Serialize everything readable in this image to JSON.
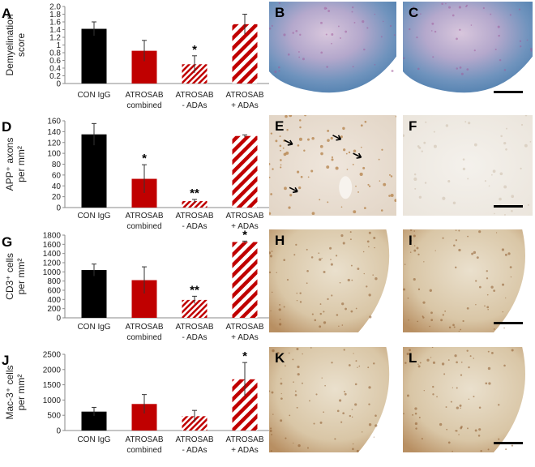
{
  "colors": {
    "con": "#000000",
    "combined": "#c00000",
    "stripe": "#c00000",
    "axis": "#8a8a8a",
    "error": "#333333"
  },
  "categories": [
    [
      "CON IgG"
    ],
    [
      "ATROSAB",
      "combined"
    ],
    [
      "ATROSAB",
      "- ADAs"
    ],
    [
      "ATROSAB",
      "+ ADAs"
    ]
  ],
  "bar_styles": [
    "solid-black",
    "solid-red",
    "thin-stripe-red",
    "thick-stripe-red"
  ],
  "chart_data": [
    {
      "type": "bar",
      "panel": "A",
      "ylabel_lines": [
        "Demyelination",
        "score"
      ],
      "ylim": [
        0,
        2.0
      ],
      "yticks": [
        "0",
        "0.2",
        "0.4",
        "0.6",
        "0.8",
        "1",
        "1.2",
        "1.4",
        "1.6",
        "1.8",
        "2.0"
      ],
      "values": [
        1.42,
        0.85,
        0.5,
        1.54
      ],
      "errors": [
        0.18,
        0.27,
        0.22,
        0.26
      ],
      "significance": [
        "",
        "",
        "*",
        ""
      ]
    },
    {
      "type": "bar",
      "panel": "D",
      "ylabel_lines": [
        "APP⁺ axons",
        "per mm²"
      ],
      "ylim": [
        0,
        160
      ],
      "yticks": [
        "0",
        "20",
        "40",
        "60",
        "80",
        "100",
        "120",
        "140",
        "160"
      ],
      "values": [
        135,
        53,
        12,
        132
      ],
      "errors": [
        20,
        26,
        3,
        2
      ],
      "significance": [
        "",
        "*",
        "**",
        ""
      ]
    },
    {
      "type": "bar",
      "panel": "G",
      "ylabel_lines": [
        "CD3⁺ cells",
        "per mm²"
      ],
      "ylim": [
        0,
        1800
      ],
      "yticks": [
        "0",
        "200",
        "400",
        "600",
        "800",
        "1000",
        "1200",
        "1400",
        "1600",
        "1800"
      ],
      "values": [
        1040,
        820,
        390,
        1650
      ],
      "errors": [
        130,
        290,
        80,
        20
      ],
      "significance": [
        "",
        "",
        "**",
        "*"
      ]
    },
    {
      "type": "bar",
      "panel": "J",
      "ylabel_lines": [
        "Mac-3⁺ cells",
        "per mm²"
      ],
      "ylim": [
        0,
        2500
      ],
      "yticks": [
        "0",
        "500",
        "1000",
        "1500",
        "2000",
        "2500"
      ],
      "values": [
        620,
        870,
        470,
        1680
      ],
      "errors": [
        140,
        310,
        190,
        550
      ],
      "significance": [
        "",
        "",
        "",
        "*"
      ]
    }
  ],
  "micrographs": [
    {
      "label": "B",
      "stain": "myelin"
    },
    {
      "label": "C",
      "stain": "myelin",
      "scale_bar": true
    },
    {
      "label": "E",
      "stain": "app",
      "arrows": true
    },
    {
      "label": "F",
      "stain": "app",
      "scale_bar": true
    },
    {
      "label": "H",
      "stain": "dab"
    },
    {
      "label": "I",
      "stain": "dab",
      "scale_bar": true
    },
    {
      "label": "K",
      "stain": "dab"
    },
    {
      "label": "L",
      "stain": "dab",
      "scale_bar": true
    }
  ]
}
